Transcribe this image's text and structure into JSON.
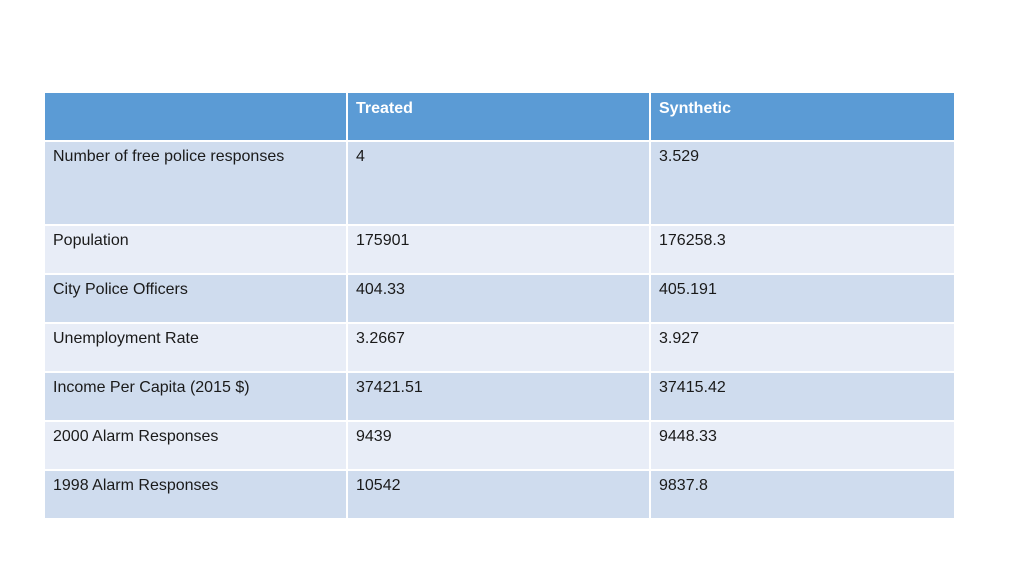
{
  "table": {
    "headers": [
      "",
      "Treated",
      "Synthetic"
    ],
    "rows": [
      [
        "Number of free police responses",
        "4",
        "3.529"
      ],
      [
        "Population",
        "175901",
        "176258.3"
      ],
      [
        "City Police Officers",
        "404.33",
        "405.191"
      ],
      [
        "Unemployment Rate",
        "3.2667",
        "3.927"
      ],
      [
        "Income Per Capita (2015 $)",
        "37421.51",
        "37415.42"
      ],
      [
        "2000 Alarm Responses",
        "9439",
        "9448.33"
      ],
      [
        "1998 Alarm Responses",
        "10542",
        "9837.8"
      ]
    ]
  },
  "colors": {
    "header_bg": "#5b9bd5",
    "row_band_dark": "#cfdcee",
    "row_band_light": "#e8edf7"
  }
}
